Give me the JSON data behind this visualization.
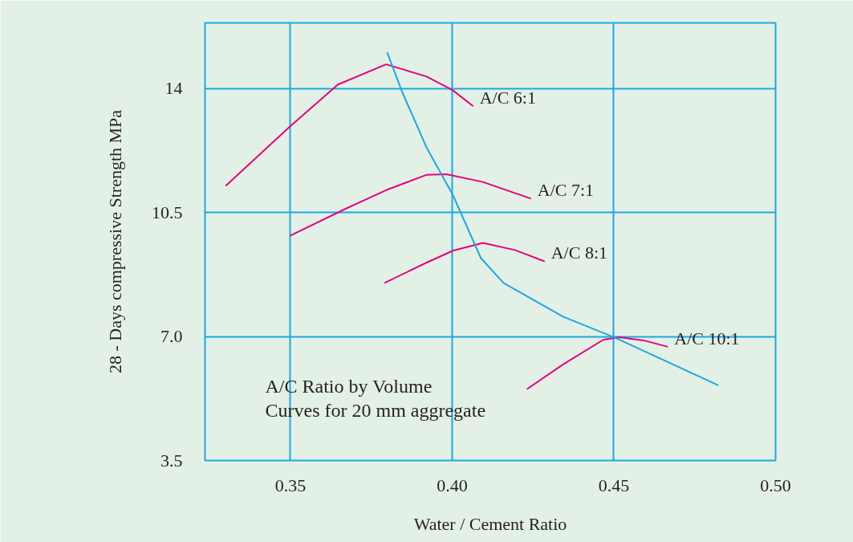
{
  "chart_data": {
    "type": "line",
    "xlabel": "Water / Cement Ratio",
    "ylabel": "28 - Days compressive Strength MPa",
    "xlim": [
      0.3236,
      0.5
    ],
    "ylim": [
      3.5,
      15.85
    ],
    "xticks": [
      0.35,
      {
        "value": 0.4,
        "label": "0.40"
      },
      0.45,
      {
        "value": 0.5,
        "label": "0.50"
      }
    ],
    "yticks": [
      {
        "value": 3.5,
        "label": "3.5"
      },
      {
        "value": 7,
        "label": "7.0"
      },
      10.5,
      14
    ],
    "grid": true,
    "marker": "none",
    "line_style": "solid",
    "series": [
      {
        "name": "A/C 6:1",
        "color": "#e6007e",
        "x": [
          0.33,
          0.35,
          0.3647,
          0.3796,
          0.392,
          0.4002,
          0.4065
        ],
        "values": [
          11.25,
          12.94,
          14.11,
          14.68,
          14.34,
          13.95,
          13.5
        ]
      },
      {
        "name": "A/C 7:1",
        "color": "#e6007e",
        "x": [
          0.35,
          0.3672,
          0.3796,
          0.392,
          0.3983,
          0.4095,
          0.4244
        ],
        "values": [
          9.85,
          10.61,
          11.13,
          11.56,
          11.58,
          11.36,
          10.89
        ]
      },
      {
        "name": "A/C 8:1",
        "color": "#e6007e",
        "x": [
          0.3791,
          0.392,
          0.4002,
          0.4095,
          0.4194,
          0.4286
        ],
        "values": [
          8.51,
          9.08,
          9.42,
          9.64,
          9.44,
          9.12
        ]
      },
      {
        "name": "A/C 10:1",
        "color": "#e6007e",
        "x": [
          0.4231,
          0.4343,
          0.4468,
          0.4517,
          0.4592,
          0.4667
        ],
        "values": [
          5.51,
          6.21,
          6.91,
          6.98,
          6.89,
          6.71
        ]
      },
      {
        "color": "#1ba8e3",
        "x": [
          0.3799,
          0.3846,
          0.392,
          0.4002,
          0.4089,
          0.4159,
          0.4343,
          0.45,
          0.4823
        ],
        "values": [
          15.02,
          13.89,
          12.35,
          11.0,
          9.21,
          8.51,
          7.56,
          6.98,
          5.62
        ]
      }
    ],
    "annotations": [
      "A/C Ratio by Volume",
      "Curves for 20 mm aggregate"
    ]
  }
}
